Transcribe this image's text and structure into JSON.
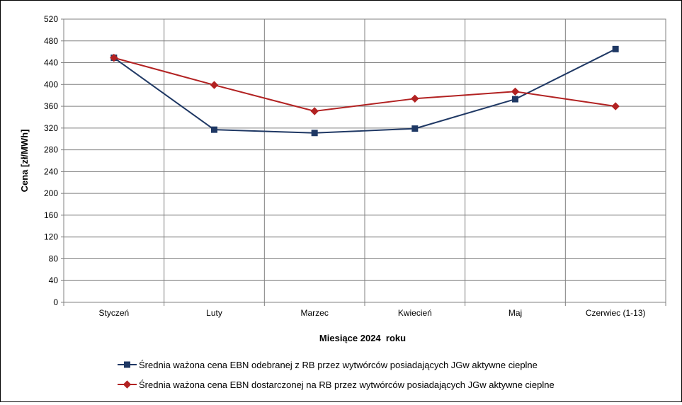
{
  "chart_data": {
    "type": "line",
    "title": "",
    "xlabel": "Miesiące 2024  roku",
    "ylabel": "Cena [zł/MWh]",
    "categories": [
      "Styczeń",
      "Luty",
      "Marzec",
      "Kwiecień",
      "Maj",
      "Czerwiec (1-13)"
    ],
    "ylim": [
      0,
      520
    ],
    "yticks": [
      0,
      40,
      80,
      120,
      160,
      200,
      240,
      280,
      320,
      360,
      400,
      440,
      480,
      520
    ],
    "grid": true,
    "legend_position": "bottom",
    "series": [
      {
        "name": "Średnia ważona cena EBN odebranej z RB przez wytwórców posiadających JGw aktywne cieplne",
        "values": [
          449,
          317,
          311,
          319,
          373,
          465
        ],
        "color": "#1F3864",
        "marker": "square"
      },
      {
        "name": "Średnia ważona cena EBN dostarczonej na RB przez wytwórców posiadających JGw aktywne cieplne",
        "values": [
          449,
          399,
          351,
          374,
          387,
          360
        ],
        "color": "#B22222",
        "marker": "diamond"
      }
    ]
  }
}
